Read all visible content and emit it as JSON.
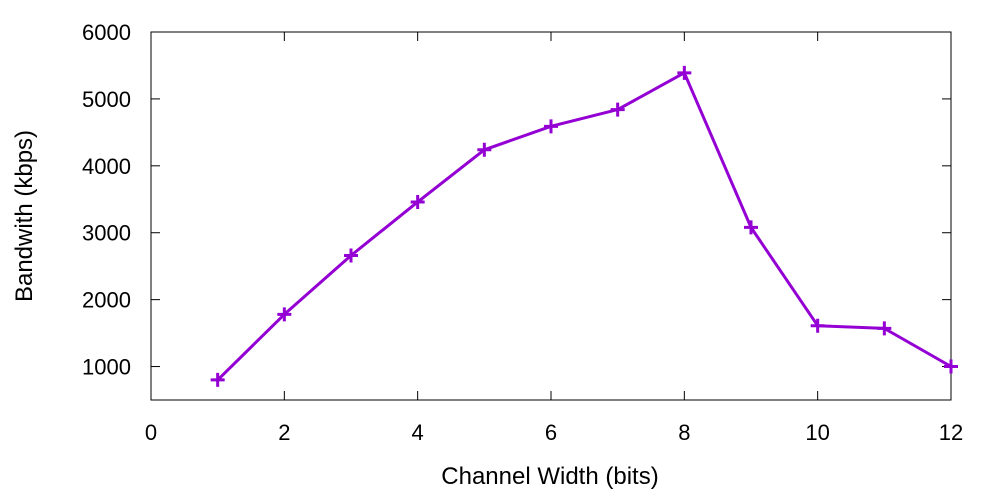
{
  "chart_data": {
    "type": "line",
    "title": "",
    "xlabel": "Channel Width (bits)",
    "ylabel": "Bandwith (kbps)",
    "xlim": [
      0,
      12
    ],
    "ylim": [
      500,
      6000
    ],
    "x_ticks": [
      0,
      2,
      4,
      6,
      8,
      10,
      12
    ],
    "y_ticks": [
      1000,
      2000,
      3000,
      4000,
      5000,
      6000
    ],
    "grid": false,
    "legend": "none",
    "marker": "plus",
    "series": [
      {
        "color": "#9400d3",
        "x": [
          1,
          2,
          3,
          4,
          5,
          6,
          7,
          8,
          9,
          10,
          11,
          12
        ],
        "y": [
          800,
          1780,
          2660,
          3460,
          4240,
          4590,
          4840,
          5390,
          3080,
          1610,
          1570,
          1000
        ]
      }
    ]
  }
}
